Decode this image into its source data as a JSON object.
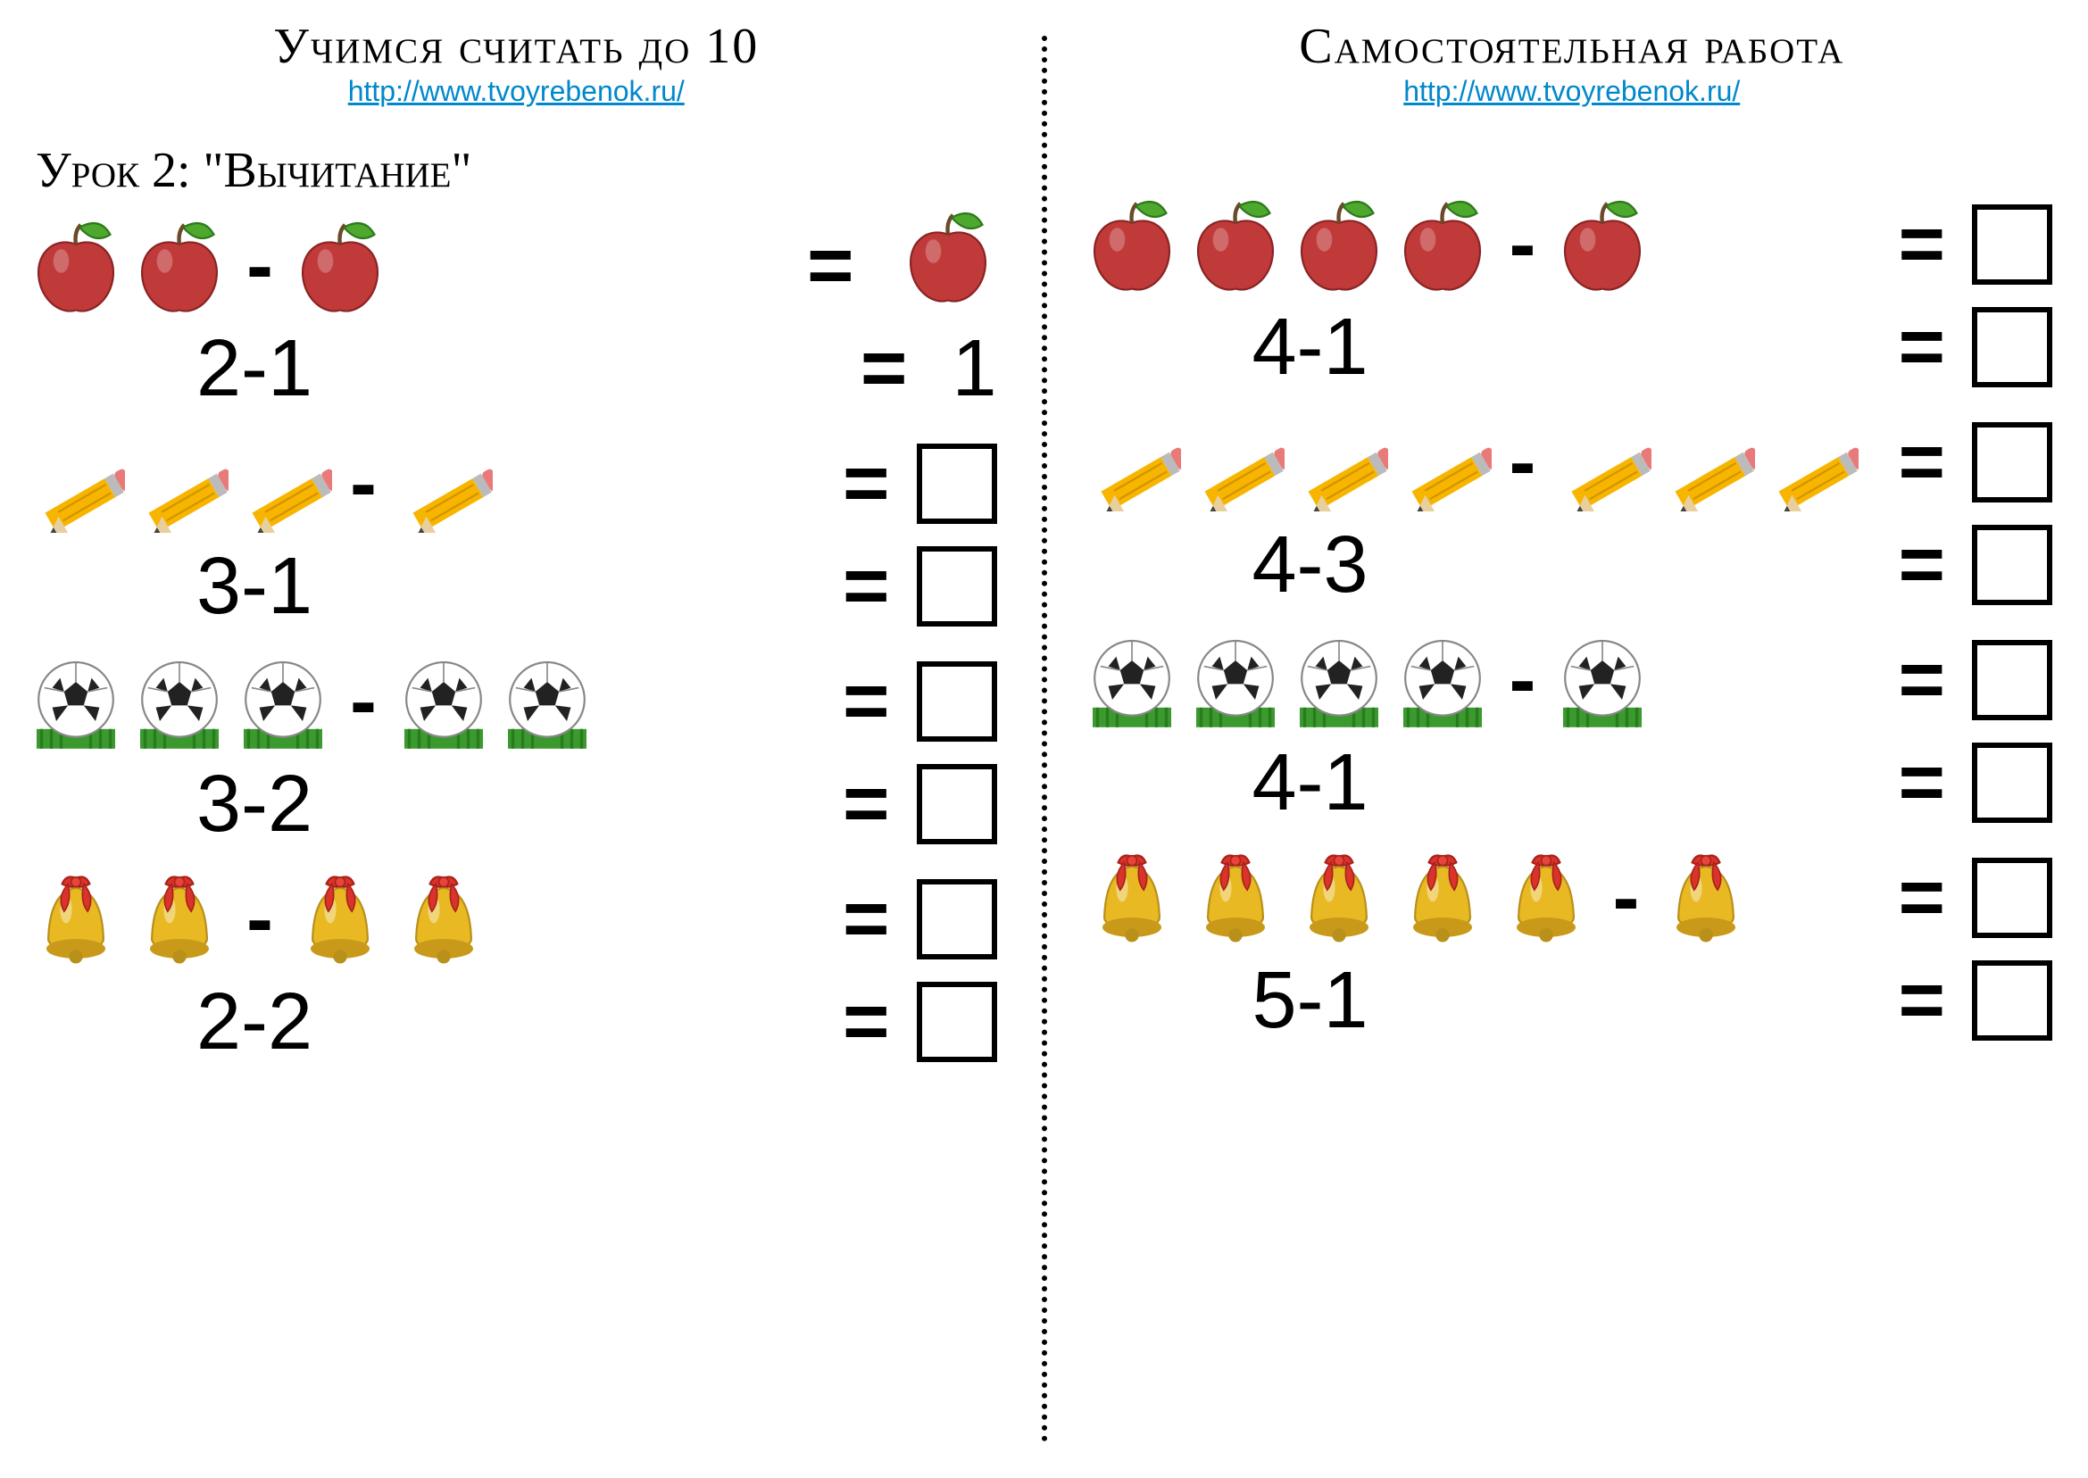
{
  "left": {
    "title": "Учимся считать до 10",
    "url": "http://www.tvoyrebenok.ru/",
    "lesson": "Урок 2: \"Вычитание\"",
    "problems": [
      {
        "icon": "apple",
        "a": 2,
        "b": 1,
        "expr": "2-1",
        "answer": "1"
      },
      {
        "icon": "pencil",
        "a": 3,
        "b": 1,
        "expr": "3-1",
        "answer": ""
      },
      {
        "icon": "ball",
        "a": 3,
        "b": 2,
        "expr": "3-2",
        "answer": ""
      },
      {
        "icon": "bell",
        "a": 2,
        "b": 2,
        "expr": "2-2",
        "answer": ""
      }
    ]
  },
  "right": {
    "title": "Самостоятельная работа",
    "url": "http://www.tvoyrebenok.ru/",
    "problems": [
      {
        "icon": "apple",
        "a": 4,
        "b": 1,
        "expr": "4-1",
        "answer": ""
      },
      {
        "icon": "pencil",
        "a": 4,
        "b": 3,
        "expr": "4-3",
        "answer": ""
      },
      {
        "icon": "ball",
        "a": 4,
        "b": 1,
        "expr": "4-1",
        "answer": ""
      },
      {
        "icon": "bell",
        "a": 5,
        "b": 1,
        "expr": "5-1",
        "answer": ""
      }
    ]
  },
  "style": {
    "title_fontsize": 56,
    "url_color": "#0088cc",
    "url_fontsize": 32,
    "op_fontsize": 90,
    "num_fontsize": 90,
    "box_border": "#000000",
    "box_border_width": 6,
    "divider_style": "dotted",
    "background": "#ffffff",
    "icon_colors": {
      "apple_body": "#c13a3a",
      "apple_leaf": "#4fa82e",
      "pencil_body": "#f7b500",
      "pencil_eraser": "#e87a7a",
      "pencil_ferrule": "#bbbbbb",
      "ball_white": "#ffffff",
      "ball_black": "#222222",
      "ball_grass": "#3a9a2e",
      "bell_body": "#e8b923",
      "bell_ribbon": "#d9332b"
    }
  }
}
